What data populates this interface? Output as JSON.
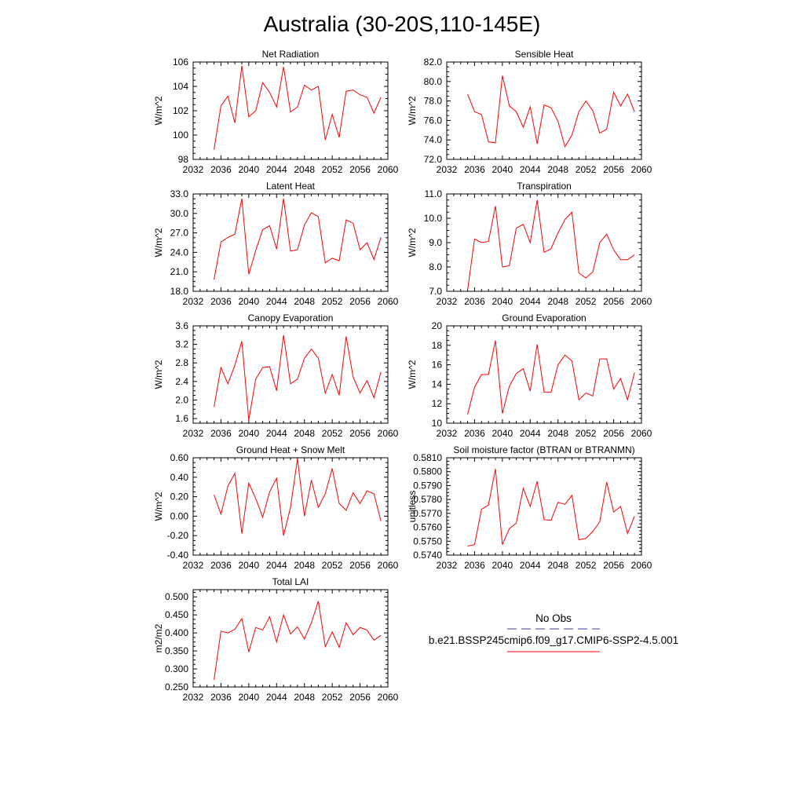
{
  "figure": {
    "title": "Australia (30-20S,110-145E)",
    "line_color": "#ff0000",
    "obs_color": "#3a3aa8"
  },
  "legend": {
    "obs_label": "No Obs",
    "model_label": "b.e21.BSSP245cmip6.f09_g17.CMIP6-SSP2-4.5.001"
  },
  "chart_data": [
    {
      "type": "line",
      "title": "Net Radiation",
      "ylabel": "W/m^2",
      "xlim": [
        2032,
        2060
      ],
      "ylim": [
        98,
        106
      ],
      "yticks": [
        "98",
        "100",
        "102",
        "104",
        "106"
      ],
      "xticks": [
        "2032",
        "2036",
        "2040",
        "2044",
        "2048",
        "2052",
        "2056",
        "2060"
      ],
      "x": [
        2035,
        2036,
        2037,
        2038,
        2039,
        2040,
        2041,
        2042,
        2043,
        2044,
        2045,
        2046,
        2047,
        2048,
        2049,
        2050,
        2051,
        2052,
        2053,
        2054,
        2055,
        2056,
        2057,
        2058,
        2059
      ],
      "series": [
        {
          "values": [
            98.8,
            102.4,
            103.2,
            101.0,
            105.7,
            101.5,
            102.0,
            104.3,
            103.5,
            102.3,
            105.6,
            101.9,
            102.3,
            104.1,
            103.7,
            104.0,
            99.6,
            101.7,
            99.8,
            103.6,
            103.7,
            103.3,
            103.1,
            101.8,
            103.1
          ]
        }
      ]
    },
    {
      "type": "line",
      "title": "Sensible Heat",
      "ylabel": "W/m^2",
      "xlim": [
        2032,
        2060
      ],
      "ylim": [
        72.0,
        82.0
      ],
      "yticks": [
        "72.0",
        "74.0",
        "76.0",
        "78.0",
        "80.0",
        "82.0"
      ],
      "xticks": [
        "2032",
        "2036",
        "2040",
        "2044",
        "2048",
        "2052",
        "2056",
        "2060"
      ],
      "x": [
        2035,
        2036,
        2037,
        2038,
        2039,
        2040,
        2041,
        2042,
        2043,
        2044,
        2045,
        2046,
        2047,
        2048,
        2049,
        2050,
        2051,
        2052,
        2053,
        2054,
        2055,
        2056,
        2057,
        2058,
        2059
      ],
      "series": [
        {
          "values": [
            78.7,
            76.9,
            76.6,
            73.8,
            73.7,
            80.6,
            77.5,
            76.9,
            75.3,
            77.4,
            73.6,
            77.6,
            77.3,
            75.9,
            73.3,
            74.5,
            76.9,
            78.0,
            77.0,
            74.7,
            75.1,
            78.9,
            77.5,
            78.7,
            76.9
          ]
        }
      ]
    },
    {
      "type": "line",
      "title": "Latent Heat",
      "ylabel": "W/m^2",
      "xlim": [
        2032,
        2060
      ],
      "ylim": [
        18.0,
        33.0
      ],
      "yticks": [
        "18.0",
        "21.0",
        "24.0",
        "27.0",
        "30.0",
        "33.0"
      ],
      "xticks": [
        "2032",
        "2036",
        "2040",
        "2044",
        "2048",
        "2052",
        "2056",
        "2060"
      ],
      "x": [
        2035,
        2036,
        2037,
        2038,
        2039,
        2040,
        2041,
        2042,
        2043,
        2044,
        2045,
        2046,
        2047,
        2048,
        2049,
        2050,
        2051,
        2052,
        2053,
        2054,
        2055,
        2056,
        2057,
        2058,
        2059
      ],
      "series": [
        {
          "values": [
            19.8,
            25.6,
            26.3,
            26.8,
            32.3,
            20.6,
            24.3,
            27.5,
            28.1,
            24.5,
            32.3,
            24.2,
            24.4,
            28.2,
            30.1,
            29.5,
            22.4,
            23.1,
            22.7,
            29.0,
            28.5,
            24.4,
            25.5,
            22.9,
            26.3
          ]
        }
      ]
    },
    {
      "type": "line",
      "title": "Transpiration",
      "ylabel": "W/m^2",
      "xlim": [
        2032,
        2060
      ],
      "ylim": [
        7.0,
        11.0
      ],
      "yticks": [
        "7.0",
        "8.0",
        "9.0",
        "10.0",
        "11.0"
      ],
      "xticks": [
        "2032",
        "2036",
        "2040",
        "2044",
        "2048",
        "2052",
        "2056",
        "2060"
      ],
      "x": [
        2035,
        2036,
        2037,
        2038,
        2039,
        2040,
        2041,
        2042,
        2043,
        2044,
        2045,
        2046,
        2047,
        2048,
        2049,
        2050,
        2051,
        2052,
        2053,
        2054,
        2055,
        2056,
        2057,
        2058,
        2059
      ],
      "series": [
        {
          "values": [
            7.05,
            9.15,
            9.0,
            9.05,
            10.5,
            8.0,
            8.05,
            9.6,
            9.75,
            9.0,
            10.75,
            8.6,
            8.75,
            9.4,
            9.95,
            10.25,
            7.75,
            7.55,
            7.8,
            9.0,
            9.35,
            8.7,
            8.3,
            8.3,
            8.5
          ]
        }
      ]
    },
    {
      "type": "line",
      "title": "Canopy Evaporation",
      "ylabel": "W/m^2",
      "xlim": [
        2032,
        2060
      ],
      "ylim": [
        1.5,
        3.6
      ],
      "yticks": [
        "1.6",
        "2.0",
        "2.4",
        "2.8",
        "3.2",
        "3.6"
      ],
      "xticks": [
        "2032",
        "2036",
        "2040",
        "2044",
        "2048",
        "2052",
        "2056",
        "2060"
      ],
      "x": [
        2035,
        2036,
        2037,
        2038,
        2039,
        2040,
        2041,
        2042,
        2043,
        2044,
        2045,
        2046,
        2047,
        2048,
        2049,
        2050,
        2051,
        2052,
        2053,
        2054,
        2055,
        2056,
        2057,
        2058,
        2059
      ],
      "series": [
        {
          "values": [
            1.85,
            2.7,
            2.35,
            2.75,
            3.27,
            1.57,
            2.45,
            2.7,
            2.72,
            2.2,
            3.4,
            2.35,
            2.45,
            2.9,
            3.1,
            2.9,
            2.15,
            2.55,
            2.1,
            3.37,
            2.5,
            2.15,
            2.42,
            2.05,
            2.6
          ]
        }
      ]
    },
    {
      "type": "line",
      "title": "Ground Evaporation",
      "ylabel": "W/m^2",
      "xlim": [
        2032,
        2060
      ],
      "ylim": [
        10,
        20
      ],
      "yticks": [
        "10",
        "12",
        "14",
        "16",
        "18",
        "20"
      ],
      "xticks": [
        "2032",
        "2036",
        "2040",
        "2044",
        "2048",
        "2052",
        "2056",
        "2060"
      ],
      "x": [
        2035,
        2036,
        2037,
        2038,
        2039,
        2040,
        2041,
        2042,
        2043,
        2044,
        2045,
        2046,
        2047,
        2048,
        2049,
        2050,
        2051,
        2052,
        2053,
        2054,
        2055,
        2056,
        2057,
        2058,
        2059
      ],
      "series": [
        {
          "values": [
            10.9,
            13.7,
            15.0,
            15.0,
            18.5,
            11.0,
            13.8,
            15.1,
            15.6,
            13.3,
            18.1,
            13.2,
            13.2,
            16.0,
            17.0,
            16.4,
            12.4,
            13.1,
            12.8,
            16.6,
            16.6,
            13.5,
            14.6,
            12.4,
            15.2
          ]
        }
      ]
    },
    {
      "type": "line",
      "title": "Ground Heat + Snow Melt",
      "ylabel": "W/m^2",
      "xlim": [
        2032,
        2060
      ],
      "ylim": [
        -0.4,
        0.6
      ],
      "yticks": [
        "-0.40",
        "-0.20",
        "0.00",
        "0.20",
        "0.40",
        "0.60"
      ],
      "xticks": [
        "2032",
        "2036",
        "2040",
        "2044",
        "2048",
        "2052",
        "2056",
        "2060"
      ],
      "x": [
        2035,
        2036,
        2037,
        2038,
        2039,
        2040,
        2041,
        2042,
        2043,
        2044,
        2045,
        2046,
        2047,
        2048,
        2049,
        2050,
        2051,
        2052,
        2053,
        2054,
        2055,
        2056,
        2057,
        2058,
        2059
      ],
      "series": [
        {
          "values": [
            0.22,
            0.02,
            0.31,
            0.44,
            -0.18,
            0.34,
            0.18,
            -0.01,
            0.25,
            0.39,
            -0.2,
            0.09,
            0.59,
            0.0,
            0.37,
            0.09,
            0.23,
            0.49,
            0.13,
            0.06,
            0.24,
            0.13,
            0.26,
            0.23,
            -0.05
          ]
        }
      ]
    },
    {
      "type": "line",
      "title": "Soil moisture factor (BTRAN or BTRANMN)",
      "ylabel": "unitless",
      "xlim": [
        2032,
        2060
      ],
      "ylim": [
        0.574,
        0.581
      ],
      "yticks": [
        "0.5740",
        "0.5750",
        "0.5760",
        "0.5770",
        "0.5780",
        "0.5790",
        "0.5800",
        "0.5810"
      ],
      "xticks": [
        "2032",
        "2036",
        "2040",
        "2044",
        "2048",
        "2052",
        "2056",
        "2060"
      ],
      "x": [
        2035,
        2036,
        2037,
        2038,
        2039,
        2040,
        2041,
        2042,
        2043,
        2044,
        2045,
        2046,
        2047,
        2048,
        2049,
        2050,
        2051,
        2052,
        2053,
        2054,
        2055,
        2056,
        2057,
        2058,
        2059
      ],
      "series": [
        {
          "values": [
            0.57465,
            0.57475,
            0.5773,
            0.5776,
            0.5802,
            0.57475,
            0.5759,
            0.5763,
            0.5788,
            0.5775,
            0.5793,
            0.57655,
            0.5765,
            0.5778,
            0.57765,
            0.5783,
            0.5751,
            0.5752,
            0.5757,
            0.5764,
            0.57925,
            0.5771,
            0.5775,
            0.57555,
            0.5768
          ]
        }
      ]
    },
    {
      "type": "line",
      "title": "Total LAI",
      "ylabel": "m2/m2",
      "xlim": [
        2032,
        2060
      ],
      "ylim": [
        0.25,
        0.52
      ],
      "yticks": [
        "0.250",
        "0.300",
        "0.350",
        "0.400",
        "0.450",
        "0.500"
      ],
      "xticks": [
        "2032",
        "2036",
        "2040",
        "2044",
        "2048",
        "2052",
        "2056",
        "2060"
      ],
      "x": [
        2035,
        2036,
        2037,
        2038,
        2039,
        2040,
        2041,
        2042,
        2043,
        2044,
        2045,
        2046,
        2047,
        2048,
        2049,
        2050,
        2051,
        2052,
        2053,
        2054,
        2055,
        2056,
        2057,
        2058,
        2059
      ],
      "series": [
        {
          "values": [
            0.27,
            0.405,
            0.4,
            0.41,
            0.44,
            0.347,
            0.415,
            0.408,
            0.445,
            0.375,
            0.45,
            0.397,
            0.417,
            0.383,
            0.428,
            0.488,
            0.362,
            0.403,
            0.36,
            0.428,
            0.395,
            0.415,
            0.408,
            0.38,
            0.393
          ]
        }
      ]
    }
  ]
}
